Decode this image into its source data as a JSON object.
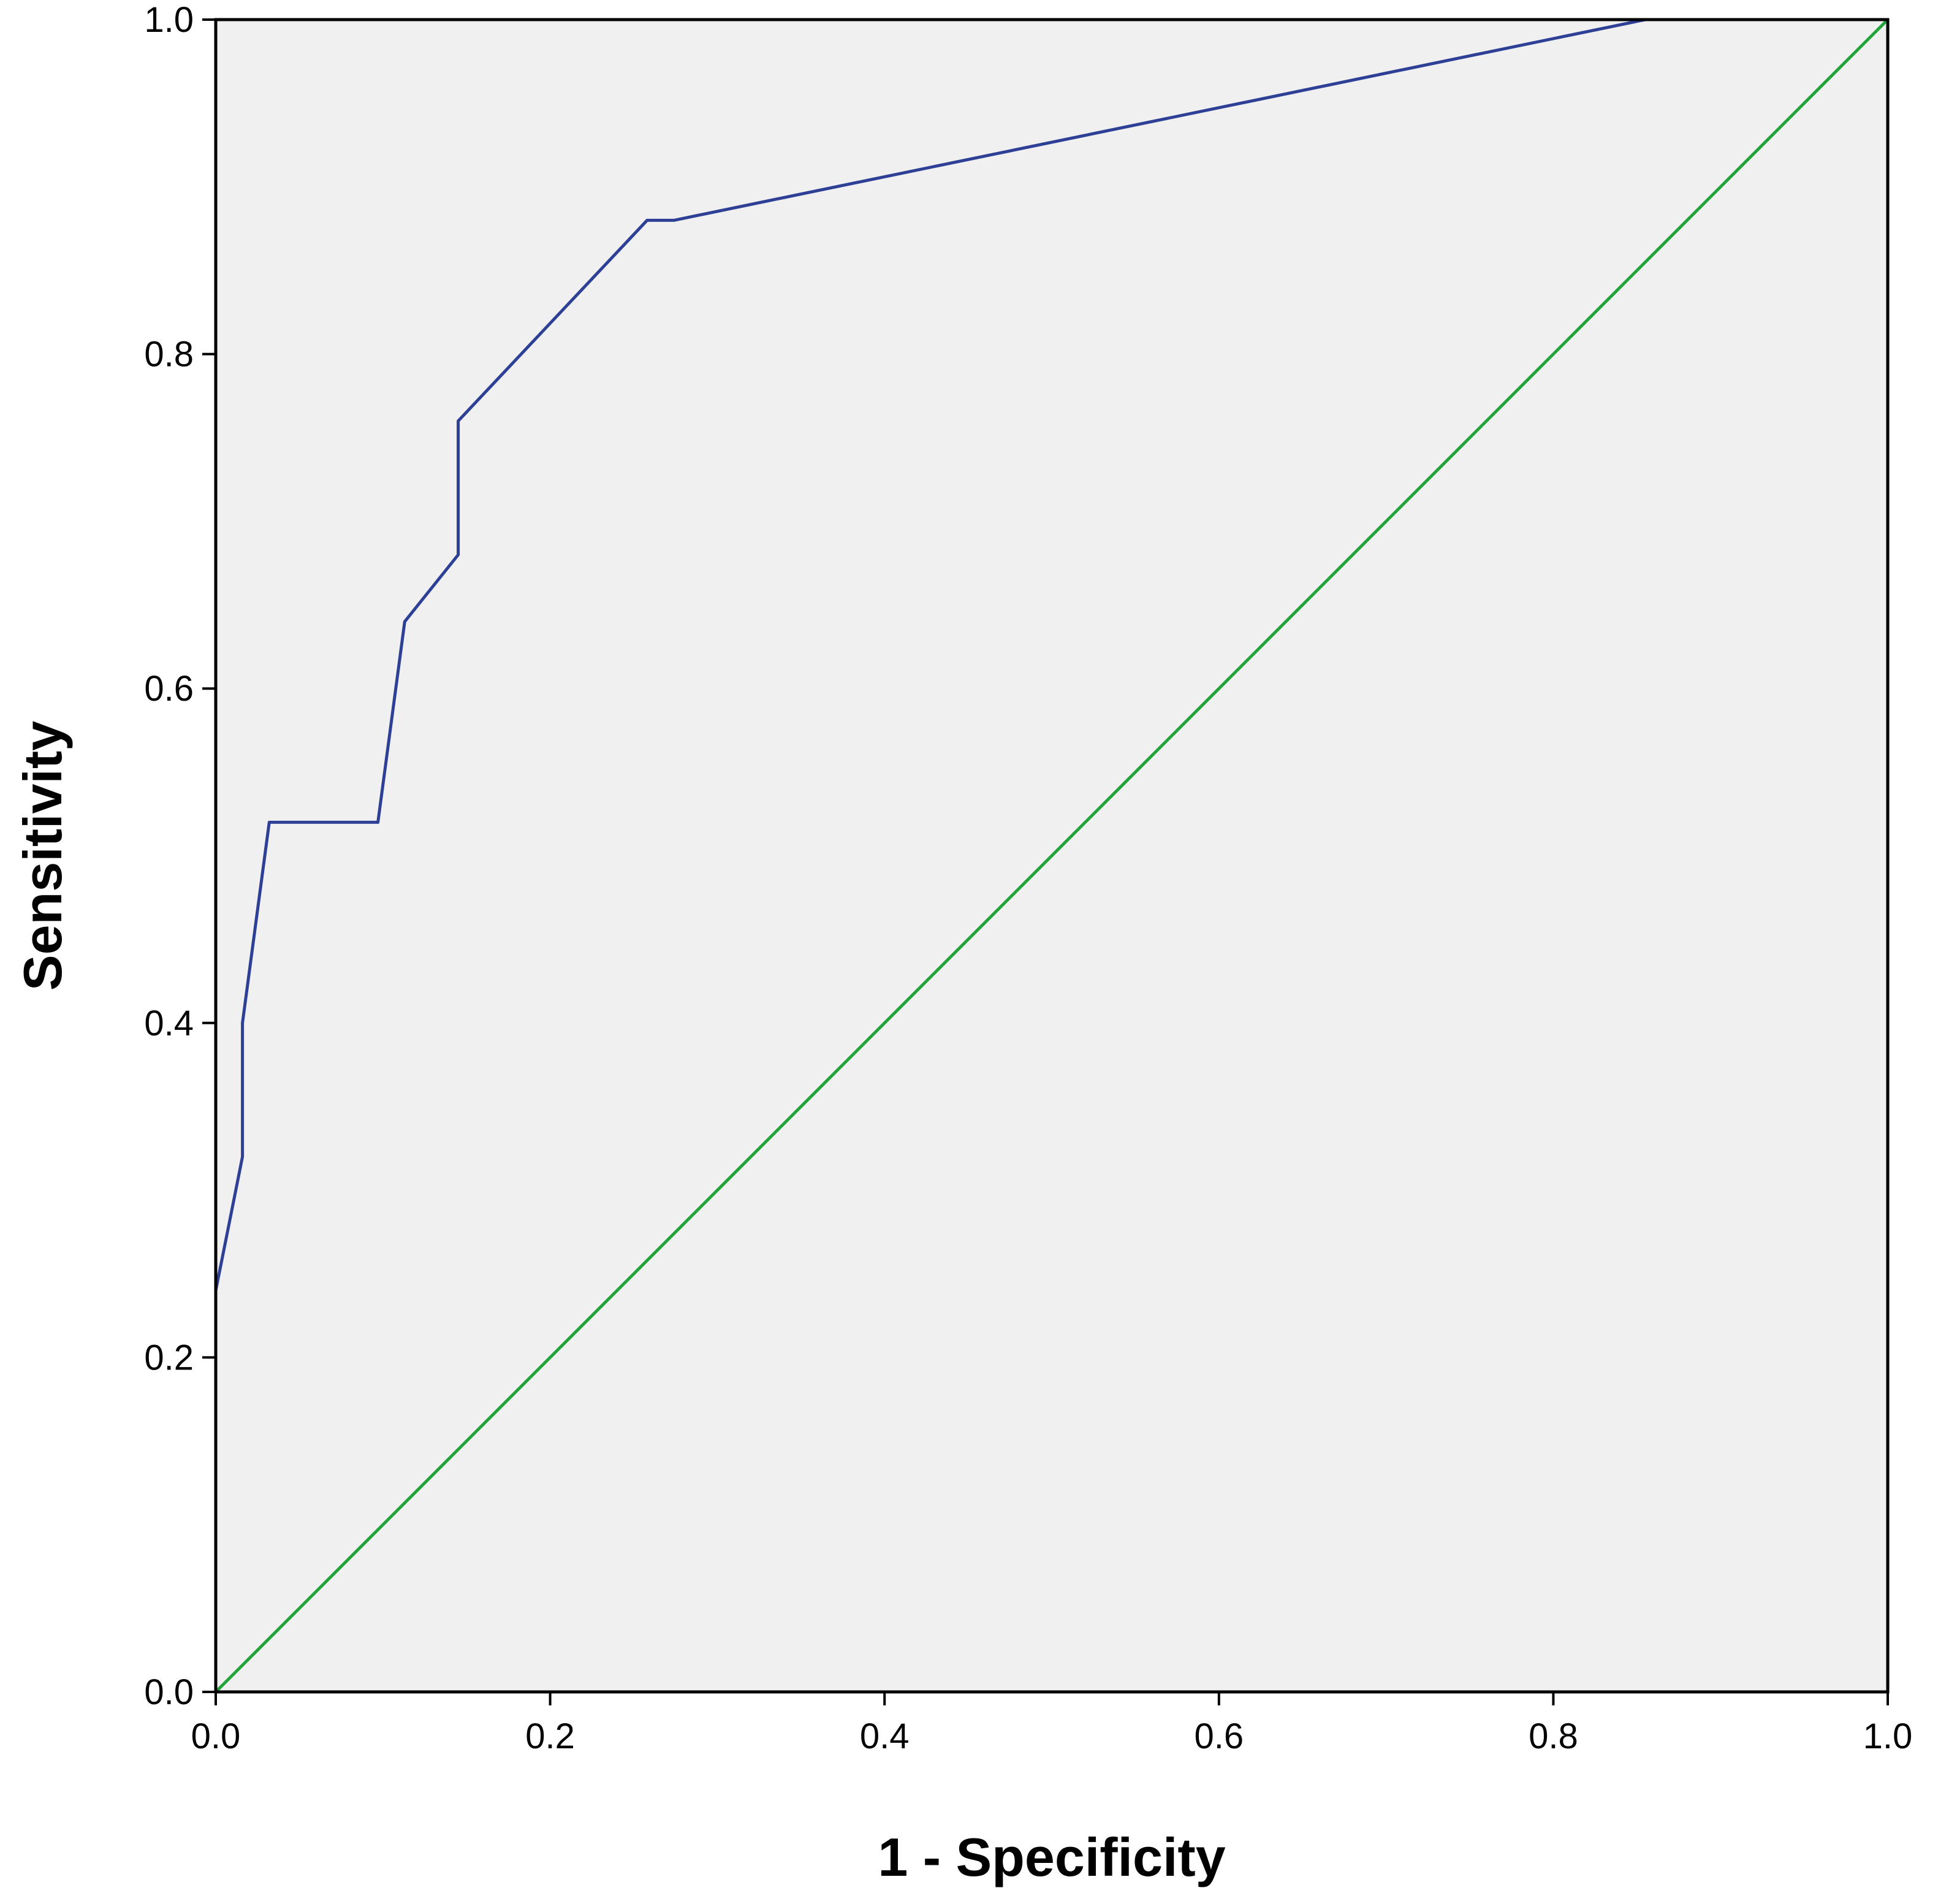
{
  "chart_data": {
    "type": "line",
    "title": "",
    "xlabel": "1 - Specificity",
    "ylabel": "Sensitivity",
    "xlim": [
      0.0,
      1.0
    ],
    "ylim": [
      0.0,
      1.0
    ],
    "x_ticks": [
      "0.0",
      "0.2",
      "0.4",
      "0.6",
      "0.8",
      "1.0"
    ],
    "y_ticks": [
      "0.0",
      "0.2",
      "0.4",
      "0.6",
      "0.8",
      "1.0"
    ],
    "grid": false,
    "legend": "none",
    "plot_background": "#f0f0f0",
    "series": [
      {
        "color": "#2e3f96",
        "x": [
          0.0,
          0.0,
          0.016,
          0.016,
          0.032,
          0.097,
          0.113,
          0.145,
          0.145,
          0.258,
          0.274,
          0.855,
          1.0
        ],
        "y": [
          0.24,
          0.24,
          0.32,
          0.4,
          0.52,
          0.52,
          0.64,
          0.68,
          0.76,
          0.88,
          0.88,
          1.0,
          1.0
        ]
      },
      {
        "color": "#22a33a",
        "x": [
          0.0,
          1.0
        ],
        "y": [
          0.0,
          1.0
        ]
      }
    ]
  }
}
